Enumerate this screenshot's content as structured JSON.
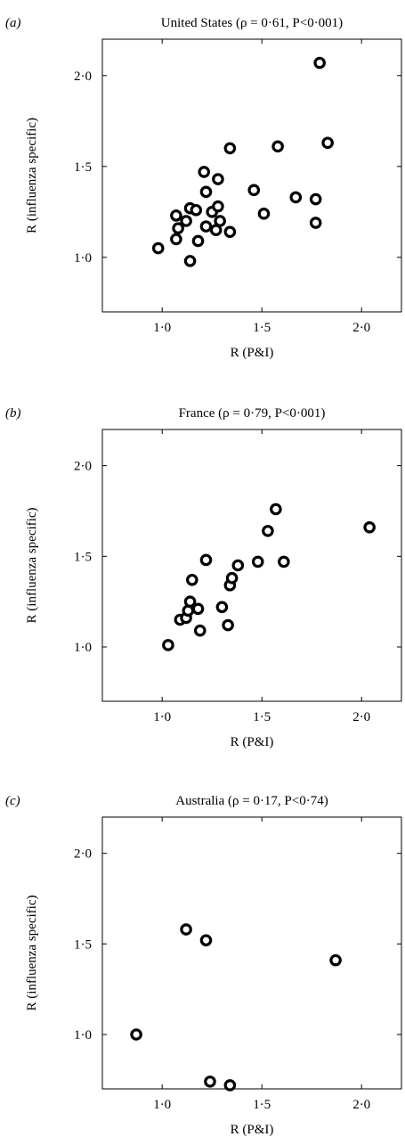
{
  "chart_data": [
    {
      "type": "scatter",
      "panel": "(a)",
      "title": "United States (ρ = 0·61, P<0·001)",
      "xlabel": "R (P&I)",
      "ylabel": "R (influenza specific)",
      "xlim": [
        0.7,
        2.2
      ],
      "ylim": [
        0.7,
        2.2
      ],
      "xticks": [
        "1·0",
        "1·5",
        "2·0"
      ],
      "yticks": [
        "1·0",
        "1·5",
        "2·0"
      ],
      "points": [
        {
          "x": 0.98,
          "y": 1.05
        },
        {
          "x": 1.07,
          "y": 1.1
        },
        {
          "x": 1.07,
          "y": 1.23
        },
        {
          "x": 1.08,
          "y": 1.16
        },
        {
          "x": 1.12,
          "y": 1.2
        },
        {
          "x": 1.14,
          "y": 1.27
        },
        {
          "x": 1.14,
          "y": 0.98
        },
        {
          "x": 1.17,
          "y": 1.26
        },
        {
          "x": 1.18,
          "y": 1.09
        },
        {
          "x": 1.21,
          "y": 1.47
        },
        {
          "x": 1.22,
          "y": 1.36
        },
        {
          "x": 1.22,
          "y": 1.17
        },
        {
          "x": 1.25,
          "y": 1.25
        },
        {
          "x": 1.27,
          "y": 1.15
        },
        {
          "x": 1.28,
          "y": 1.43
        },
        {
          "x": 1.28,
          "y": 1.28
        },
        {
          "x": 1.29,
          "y": 1.2
        },
        {
          "x": 1.34,
          "y": 1.6
        },
        {
          "x": 1.34,
          "y": 1.14
        },
        {
          "x": 1.46,
          "y": 1.37
        },
        {
          "x": 1.51,
          "y": 1.24
        },
        {
          "x": 1.58,
          "y": 1.61
        },
        {
          "x": 1.67,
          "y": 1.33
        },
        {
          "x": 1.77,
          "y": 1.32
        },
        {
          "x": 1.77,
          "y": 1.19
        },
        {
          "x": 1.79,
          "y": 2.07
        },
        {
          "x": 1.83,
          "y": 1.63
        }
      ]
    },
    {
      "type": "scatter",
      "panel": "(b)",
      "title": "France (ρ = 0·79, P<0·001)",
      "xlabel": "R (P&I)",
      "ylabel": "R (influenza specific)",
      "xlim": [
        0.7,
        2.2
      ],
      "ylim": [
        0.7,
        2.2
      ],
      "xticks": [
        "1·0",
        "1·5",
        "2·0"
      ],
      "yticks": [
        "1·0",
        "1·5",
        "2·0"
      ],
      "points": [
        {
          "x": 1.03,
          "y": 1.01
        },
        {
          "x": 1.09,
          "y": 1.15
        },
        {
          "x": 1.12,
          "y": 1.16
        },
        {
          "x": 1.13,
          "y": 1.2
        },
        {
          "x": 1.14,
          "y": 1.25
        },
        {
          "x": 1.15,
          "y": 1.37
        },
        {
          "x": 1.18,
          "y": 1.21
        },
        {
          "x": 1.19,
          "y": 1.09
        },
        {
          "x": 1.22,
          "y": 1.48
        },
        {
          "x": 1.3,
          "y": 1.22
        },
        {
          "x": 1.33,
          "y": 1.12
        },
        {
          "x": 1.34,
          "y": 1.34
        },
        {
          "x": 1.35,
          "y": 1.38
        },
        {
          "x": 1.38,
          "y": 1.45
        },
        {
          "x": 1.48,
          "y": 1.47
        },
        {
          "x": 1.53,
          "y": 1.64
        },
        {
          "x": 1.57,
          "y": 1.76
        },
        {
          "x": 1.61,
          "y": 1.47
        },
        {
          "x": 2.04,
          "y": 1.66
        }
      ]
    },
    {
      "type": "scatter",
      "panel": "(c)",
      "title": "Australia (ρ = 0·17, P<0·74)",
      "xlabel": "R (P&I)",
      "ylabel": "R (influenza specific)",
      "xlim": [
        0.7,
        2.2
      ],
      "ylim": [
        0.7,
        2.2
      ],
      "xticks": [
        "1·0",
        "1·5",
        "2·0"
      ],
      "yticks": [
        "1·0",
        "1·5",
        "2·0"
      ],
      "points": [
        {
          "x": 0.87,
          "y": 1.0
        },
        {
          "x": 1.12,
          "y": 1.58
        },
        {
          "x": 1.22,
          "y": 1.52
        },
        {
          "x": 1.24,
          "y": 0.74
        },
        {
          "x": 1.34,
          "y": 0.72
        },
        {
          "x": 1.87,
          "y": 1.41
        }
      ]
    }
  ]
}
